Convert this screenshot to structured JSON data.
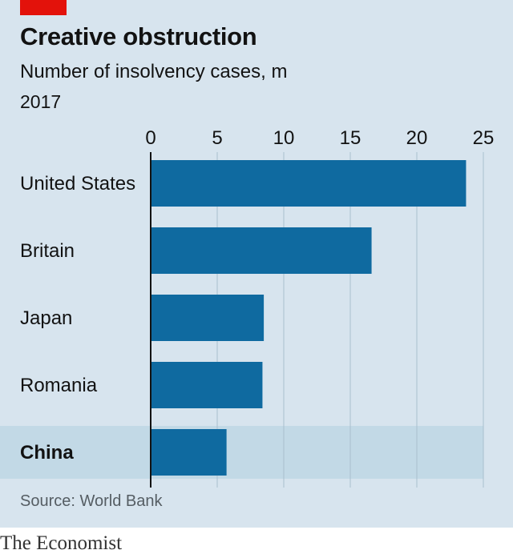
{
  "header": {
    "title": "Creative obstruction",
    "subtitle": "Number of insolvency cases, m",
    "year": "2017"
  },
  "footer": {
    "source": "Source: World Bank",
    "brand": "The Economist"
  },
  "colors": {
    "bar": "#0f6aa0",
    "background": "#d7e4ee",
    "highlight_band": "#c2d9e6",
    "accent": "#e3120b"
  },
  "chart_data": {
    "type": "bar",
    "orientation": "horizontal",
    "title": "Creative obstruction",
    "subtitle": "Number of insolvency cases, m",
    "categories": [
      "United States",
      "Britain",
      "Japan",
      "Romania",
      "China"
    ],
    "values": [
      23.7,
      16.6,
      8.5,
      8.4,
      5.7
    ],
    "highlighted_category": "China",
    "xlim": [
      0,
      25
    ],
    "xticks": [
      "0",
      "5",
      "10",
      "15",
      "20",
      "25"
    ],
    "tick_values": [
      0,
      5,
      10,
      15,
      20,
      25
    ],
    "tick_position": "top",
    "grid": true,
    "source": "Source: World Bank"
  }
}
